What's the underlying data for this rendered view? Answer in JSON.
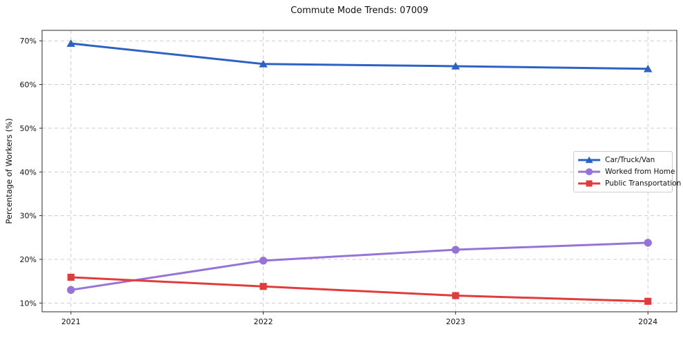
{
  "title": "Commute Mode Trends: 07009",
  "chart_data": {
    "type": "line",
    "title": "Commute Mode Trends: 07009",
    "xlabel": "",
    "ylabel": "Percentage of Workers (%)",
    "x": [
      2021,
      2022,
      2023,
      2024
    ],
    "x_tick_labels": [
      "2021",
      "2022",
      "2023",
      "2024"
    ],
    "series": [
      {
        "name": "Car/Truck/Van",
        "color": "#2c62c4",
        "marker": "triangle",
        "values": [
          69.4,
          64.7,
          64.2,
          63.6
        ]
      },
      {
        "name": "Worked from Home",
        "color": "#9673d8",
        "marker": "circle",
        "values": [
          13.0,
          19.7,
          22.2,
          23.8
        ]
      },
      {
        "name": "Public Transportation",
        "color": "#e13c3c",
        "marker": "square",
        "values": [
          15.9,
          13.8,
          11.7,
          10.4
        ]
      }
    ],
    "ylim": [
      8.0,
      72.4
    ],
    "xlim": [
      2020.85,
      2024.15
    ],
    "yticks": [
      10,
      20,
      30,
      40,
      50,
      60,
      70
    ],
    "ytick_suffix": "%",
    "grid": "dashed",
    "grid_color": "#cccccc",
    "axis_color": "#2a2a2a",
    "tick_label_color": "#111111",
    "background": "#ffffff",
    "legend_position": "right-middle",
    "legend": [
      "Car/Truck/Van",
      "Worked from Home",
      "Public Transportation"
    ]
  }
}
